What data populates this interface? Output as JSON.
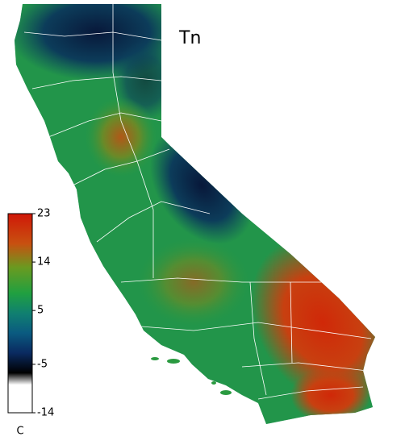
{
  "title": "Tn",
  "colorbar": {
    "unit": "C",
    "lim": [
      -14,
      23
    ],
    "ticks": [
      23,
      14,
      5,
      -5,
      -14
    ]
  }
}
